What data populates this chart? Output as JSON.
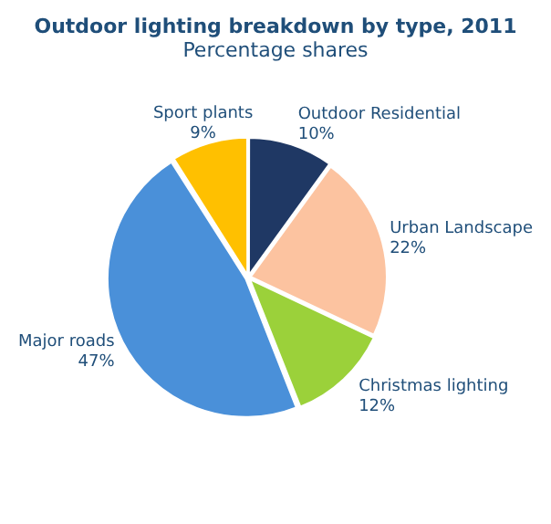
{
  "chart_data": {
    "type": "pie",
    "title": "Outdoor lighting breakdown by type, 2011",
    "subtitle": "Percentage shares",
    "categories": [
      "Outdoor Residential",
      "Urban Landscape",
      "Christmas lighting",
      "Major roads",
      "Sport plants"
    ],
    "values": [
      10,
      22,
      12,
      47,
      9
    ],
    "value_labels": [
      "10%",
      "22%",
      "12%",
      "47%",
      "9%"
    ],
    "colors": [
      "#1f3864",
      "#fcc3a0",
      "#9bd13a",
      "#4a90d9",
      "#ffc000"
    ],
    "legend": false
  }
}
